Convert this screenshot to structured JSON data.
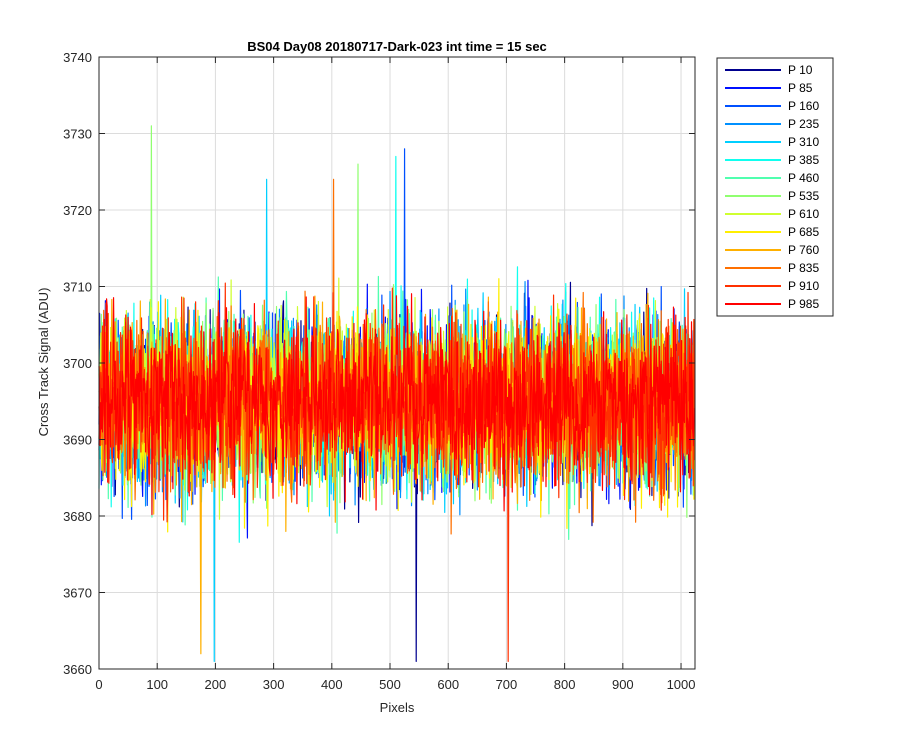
{
  "chart_data": {
    "type": "line",
    "title": "BS04 Day08 20180717-Dark-023 int time = 15 sec",
    "xlabel": "Pixels",
    "ylabel": "Cross Track Signal (ADU)",
    "xlim": [
      0,
      1024
    ],
    "ylim": [
      3660,
      3740
    ],
    "xticks": [
      0,
      100,
      200,
      300,
      400,
      500,
      600,
      700,
      800,
      900,
      1000
    ],
    "yticks": [
      3660,
      3670,
      3680,
      3690,
      3700,
      3710,
      3720,
      3730,
      3740
    ],
    "grid": true,
    "legend_position": "outside-top-right",
    "n_points_per_series": 1024,
    "approx_mean": 3695,
    "approx_range": [
      3661,
      3731
    ],
    "series": [
      {
        "name": "P 10",
        "color": "#00008F"
      },
      {
        "name": "P 85",
        "color": "#0010FF"
      },
      {
        "name": "P 160",
        "color": "#0050FF"
      },
      {
        "name": "P 235",
        "color": "#0090FF"
      },
      {
        "name": "P 310",
        "color": "#00CFFF"
      },
      {
        "name": "P 385",
        "color": "#10FFEF"
      },
      {
        "name": "P 460",
        "color": "#50FFAF"
      },
      {
        "name": "P 535",
        "color": "#90FF70"
      },
      {
        "name": "P 610",
        "color": "#CFFF30"
      },
      {
        "name": "P 685",
        "color": "#FFEF00"
      },
      {
        "name": "P 760",
        "color": "#FFB000"
      },
      {
        "name": "P 835",
        "color": "#FF7000"
      },
      {
        "name": "P 910",
        "color": "#FF3000"
      },
      {
        "name": "P 985",
        "color": "#FF0000"
      }
    ],
    "notable_spikes": [
      {
        "series": "P 535",
        "x": 90,
        "y": 3731
      },
      {
        "series": "P 160",
        "x": 525,
        "y": 3728
      },
      {
        "series": "P 385",
        "x": 510,
        "y": 3727
      },
      {
        "series": "P 535",
        "x": 445,
        "y": 3726
      },
      {
        "series": "P 835",
        "x": 403,
        "y": 3724
      },
      {
        "series": "P 310",
        "x": 288,
        "y": 3724
      },
      {
        "series": "P 760",
        "x": 175,
        "y": 3662
      },
      {
        "series": "P 310",
        "x": 198,
        "y": 3661
      },
      {
        "series": "P 10",
        "x": 545,
        "y": 3661
      },
      {
        "series": "P 910",
        "x": 703,
        "y": 3661
      }
    ]
  }
}
